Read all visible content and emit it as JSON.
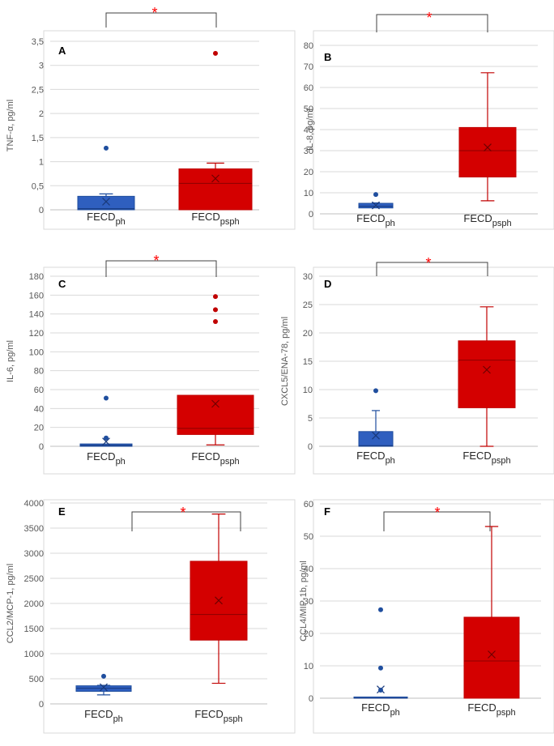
{
  "colors": {
    "ph_fill": "#2f5fbf",
    "ph_line": "#1f4e9e",
    "psph_fill": "#d40000",
    "psph_line": "#c00000",
    "grid": "#d9d9d9",
    "axis": "#bfbfbf",
    "frame": "#d9d9d9",
    "bracket": "#404040",
    "star": "#ff0000"
  },
  "chart_data": [
    {
      "type": "box",
      "panel": "A",
      "ylabel": "TNF-α, pg/ml",
      "ylim": [
        0,
        3.5
      ],
      "step": 0.5,
      "ticks": [
        "0",
        "0,5",
        "1",
        "1,5",
        "2",
        "2,5",
        "3",
        "3,5"
      ],
      "significance": "*",
      "groups": [
        {
          "name": "FECD",
          "sub": "ph",
          "q1": 0.0,
          "median": 0.02,
          "q3": 0.28,
          "wlo": 0.0,
          "whi": 0.33,
          "mean": 0.17,
          "outliers": [
            1.28
          ]
        },
        {
          "name": "FECD",
          "sub": "psph",
          "q1": 0.0,
          "median": 0.55,
          "q3": 0.85,
          "wlo": 0.0,
          "whi": 0.97,
          "mean": 0.65,
          "outliers": [
            3.25
          ]
        }
      ]
    },
    {
      "type": "box",
      "panel": "B",
      "ylabel": "IL-8, pg/ml",
      "ylim": [
        0,
        80
      ],
      "step": 10,
      "ticks": [
        "0",
        "10",
        "20",
        "30",
        "40",
        "50",
        "60",
        "70",
        "80"
      ],
      "significance": "*",
      "groups": [
        {
          "name": "FECD",
          "sub": "ph",
          "q1": 2.8,
          "median": 3.6,
          "q3": 5.0,
          "wlo": 2.8,
          "whi": 5.2,
          "mean": 4.0,
          "outliers": [
            9.2
          ]
        },
        {
          "name": "FECD",
          "sub": "psph",
          "q1": 17.5,
          "median": 30.0,
          "q3": 41.0,
          "wlo": 6.2,
          "whi": 67.0,
          "mean": 31.5,
          "outliers": []
        }
      ]
    },
    {
      "type": "box",
      "panel": "C",
      "ylabel": "IL-6, pg/ml",
      "ylim": [
        0,
        180
      ],
      "step": 20,
      "ticks": [
        "0",
        "20",
        "40",
        "60",
        "80",
        "100",
        "120",
        "140",
        "160",
        "180"
      ],
      "significance": "*",
      "groups": [
        {
          "name": "FECD",
          "sub": "ph",
          "q1": 0.0,
          "median": 1.0,
          "q3": 2.5,
          "wlo": 0.0,
          "whi": 2.5,
          "mean": 5.0,
          "outliers": [
            8.8,
            51.0
          ]
        },
        {
          "name": "FECD",
          "sub": "psph",
          "q1": 12.5,
          "median": 19.0,
          "q3": 54.0,
          "wlo": 1.5,
          "whi": 54.0,
          "mean": 45.0,
          "outliers": [
            132.0,
            144.5,
            158.5
          ]
        }
      ]
    },
    {
      "type": "box",
      "panel": "D",
      "ylabel": "CXCL5/ENA-78, pg/ml",
      "ylim": [
        0,
        30
      ],
      "step": 5,
      "ticks": [
        "0",
        "5",
        "10",
        "15",
        "20",
        "25",
        "30"
      ],
      "significance": "*",
      "groups": [
        {
          "name": "FECD",
          "sub": "ph",
          "q1": 0.0,
          "median": 0.1,
          "q3": 2.6,
          "wlo": 0.0,
          "whi": 6.3,
          "mean": 1.9,
          "outliers": [
            9.8
          ]
        },
        {
          "name": "FECD",
          "sub": "psph",
          "q1": 6.8,
          "median": 15.2,
          "q3": 18.6,
          "wlo": 0.0,
          "whi": 24.6,
          "mean": 13.5,
          "outliers": []
        }
      ]
    },
    {
      "type": "box",
      "panel": "E",
      "ylabel": "CCL2/MCP-1, pg/ml",
      "ylim": [
        0,
        4000
      ],
      "step": 500,
      "ticks": [
        "0",
        "500",
        "1000",
        "1500",
        "2000",
        "2500",
        "3000",
        "3500",
        "4000"
      ],
      "significance": "*",
      "groups": [
        {
          "name": "FECD",
          "sub": "ph",
          "q1": 250,
          "median": 310,
          "q3": 360,
          "wlo": 180,
          "whi": 370,
          "mean": 330,
          "outliers": [
            550
          ]
        },
        {
          "name": "FECD",
          "sub": "psph",
          "q1": 1270,
          "median": 1780,
          "q3": 2840,
          "wlo": 410,
          "whi": 3780,
          "mean": 2060,
          "outliers": []
        }
      ]
    },
    {
      "type": "box",
      "panel": "F",
      "ylabel": "CCL4/MIP-1b, pg/ml",
      "ylim": [
        0,
        60
      ],
      "step": 10,
      "ticks": [
        "0",
        "10",
        "20",
        "30",
        "40",
        "50",
        "60"
      ],
      "significance": "*",
      "groups": [
        {
          "name": "FECD",
          "sub": "ph",
          "q1": 0.0,
          "median": 0.0,
          "q3": 0.1,
          "wlo": 0.0,
          "whi": 0.1,
          "mean": 2.7,
          "outliers": [
            2.5,
            9.3,
            27.3
          ]
        },
        {
          "name": "FECD",
          "sub": "psph",
          "q1": 0.0,
          "median": 11.5,
          "q3": 25.0,
          "wlo": 0.0,
          "whi": 53.0,
          "mean": 13.5,
          "outliers": []
        }
      ]
    }
  ]
}
